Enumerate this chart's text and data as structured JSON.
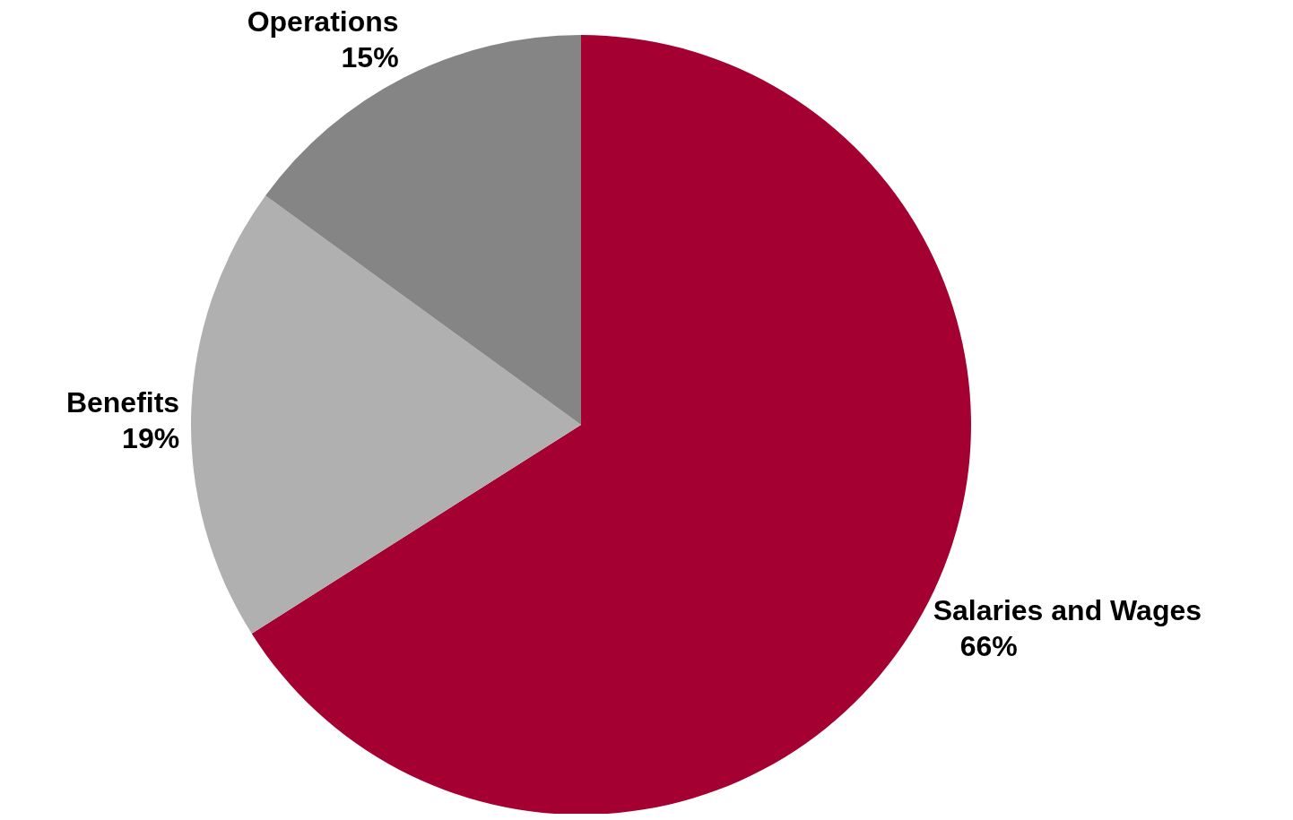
{
  "chart_data": {
    "type": "pie",
    "categories": [
      "Salaries and Wages",
      "Benefits",
      "Operations"
    ],
    "values": [
      66,
      19,
      15
    ],
    "colors": [
      "#a50032",
      "#b0b0b0",
      "#858585"
    ],
    "value_labels": [
      "66%",
      "19%",
      "15%"
    ]
  }
}
